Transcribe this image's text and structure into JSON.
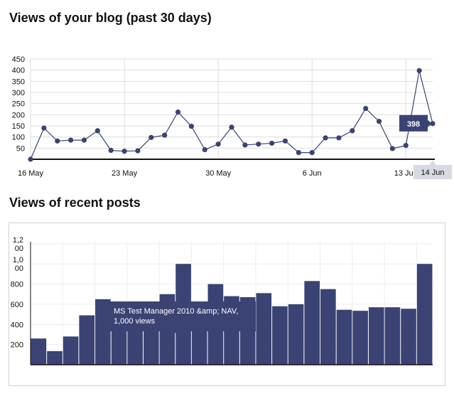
{
  "blog_views": {
    "title": "Views of your blog (past 30 days)",
    "tooltip": {
      "value": "398",
      "date_label": "14 Jun",
      "index": 30
    },
    "chart_data": {
      "type": "line",
      "title": "Views of your blog (past 30 days)",
      "x_labels": [
        "16 May",
        "23 May",
        "30 May",
        "6 Jun",
        "13 Jun"
      ],
      "x_label_indices": [
        0,
        7,
        14,
        21,
        28
      ],
      "y_ticks": [
        50,
        100,
        150,
        200,
        250,
        300,
        350,
        400,
        450
      ],
      "ylim": [
        0,
        450
      ],
      "values": [
        0,
        140,
        82,
        86,
        86,
        128,
        40,
        36,
        38,
        98,
        108,
        212,
        148,
        43,
        68,
        144,
        64,
        68,
        72,
        82,
        30,
        30,
        96,
        96,
        128,
        228,
        170,
        48,
        62,
        398,
        160
      ],
      "grid": true,
      "colors": {
        "line": "#3a4373",
        "point": "#3a4373",
        "grid": "#dddddd"
      }
    }
  },
  "recent_posts": {
    "title": "Views of recent posts",
    "tooltip": {
      "line1": "MS Test Manager 2010 &amp; NAV,",
      "line2": "1,000 views"
    },
    "chart_data": {
      "type": "bar",
      "title": "Views of recent posts",
      "y_ticks": [
        200,
        400,
        600,
        800,
        1000,
        1200
      ],
      "y_tick_labels": [
        [
          "200"
        ],
        [
          "400"
        ],
        [
          "600"
        ],
        [
          "800"
        ],
        [
          "1,0",
          "00"
        ],
        [
          "1,2",
          "00"
        ]
      ],
      "ylim": [
        0,
        1220
      ],
      "values": [
        260,
        135,
        280,
        490,
        650,
        560,
        500,
        560,
        700,
        1000,
        590,
        800,
        680,
        670,
        710,
        580,
        600,
        830,
        750,
        545,
        535,
        570,
        570,
        555,
        1000
      ],
      "grid": true,
      "colors": {
        "bar": "#3a4373",
        "grid": "#eeeeee"
      }
    }
  }
}
